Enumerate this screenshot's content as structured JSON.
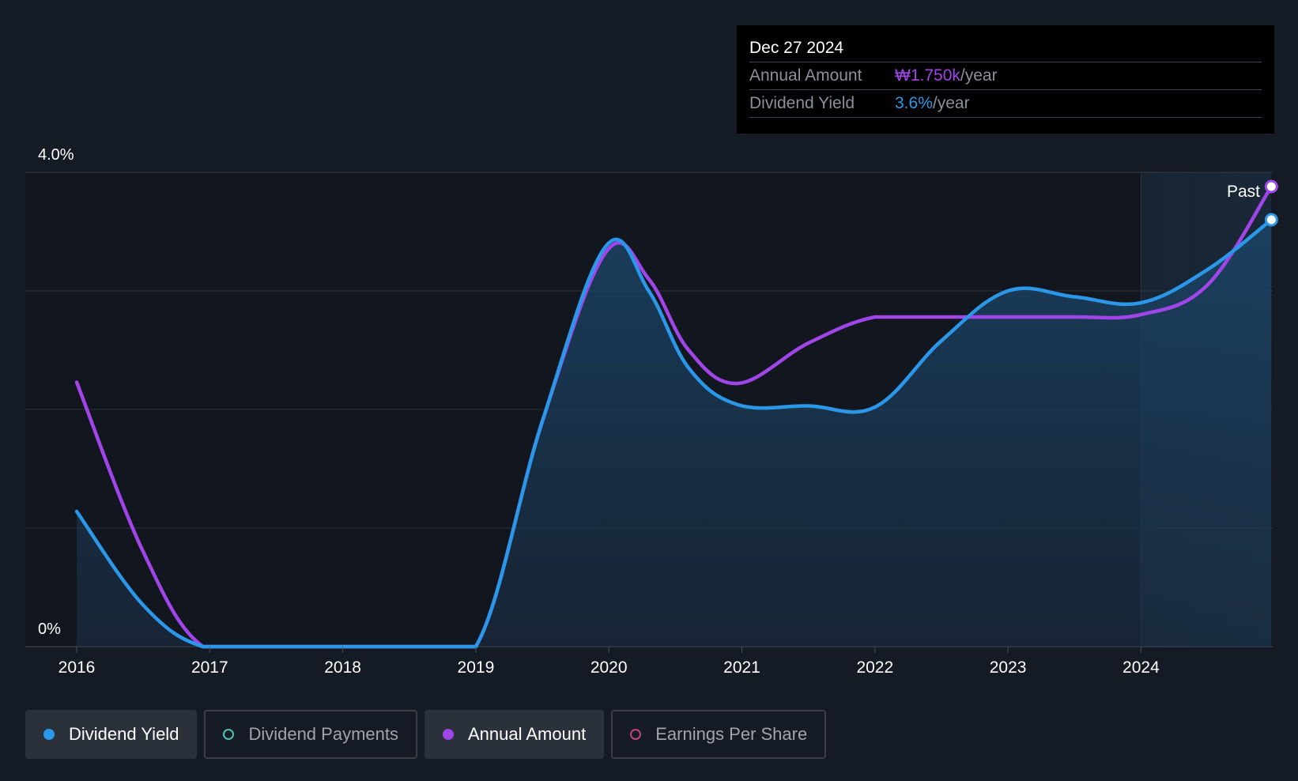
{
  "chart_data": {
    "type": "line",
    "x_ticks": [
      "2016",
      "2017",
      "2018",
      "2019",
      "2020",
      "2021",
      "2022",
      "2023",
      "2024"
    ],
    "y_tick_labels": [
      "4.0%",
      "0%"
    ],
    "ylim": [
      0,
      4.0
    ],
    "grid": true,
    "past_label": "Past",
    "series": [
      {
        "name": "Dividend Yield",
        "color": "#2b97e8",
        "area": true,
        "points": [
          [
            2016.0,
            1.14
          ],
          [
            2016.5,
            0.35
          ],
          [
            2016.95,
            0.0
          ],
          [
            2017.5,
            0.0
          ],
          [
            2018.5,
            0.0
          ],
          [
            2019.0,
            0.0
          ],
          [
            2019.5,
            1.9
          ],
          [
            2019.98,
            3.38
          ],
          [
            2020.3,
            3.0
          ],
          [
            2020.6,
            2.35
          ],
          [
            2020.97,
            2.04
          ],
          [
            2021.5,
            2.03
          ],
          [
            2022.0,
            2.02
          ],
          [
            2022.5,
            2.58
          ],
          [
            2023.0,
            3.0
          ],
          [
            2023.5,
            2.95
          ],
          [
            2024.0,
            2.9
          ],
          [
            2024.5,
            3.18
          ],
          [
            2024.98,
            3.6
          ]
        ]
      },
      {
        "name": "Annual Amount",
        "color": "#a045e8",
        "area": false,
        "points": [
          [
            2016.0,
            2.23
          ],
          [
            2016.5,
            0.8
          ],
          [
            2016.95,
            0.0
          ],
          [
            2017.5,
            0.0
          ],
          [
            2018.5,
            0.0
          ],
          [
            2019.0,
            0.0
          ],
          [
            2019.5,
            1.9
          ],
          [
            2019.98,
            3.33
          ],
          [
            2020.3,
            3.1
          ],
          [
            2020.6,
            2.5
          ],
          [
            2020.97,
            2.22
          ],
          [
            2021.5,
            2.56
          ],
          [
            2022.0,
            2.78
          ],
          [
            2022.5,
            2.78
          ],
          [
            2023.0,
            2.78
          ],
          [
            2023.5,
            2.78
          ],
          [
            2024.0,
            2.8
          ],
          [
            2024.5,
            3.05
          ],
          [
            2024.98,
            3.88
          ]
        ]
      }
    ]
  },
  "tooltip": {
    "date": "Dec 27 2024",
    "rows": [
      {
        "label": "Annual Amount",
        "value": "₩1.750k",
        "unit": "/year",
        "color": "#a045e8"
      },
      {
        "label": "Dividend Yield",
        "value": "3.6%",
        "unit": "/year",
        "color": "#2b97e8"
      }
    ]
  },
  "legend": [
    {
      "label": "Dividend Yield",
      "active": true,
      "color": "#2b97e8",
      "filled": true
    },
    {
      "label": "Dividend Payments",
      "active": false,
      "color": "#4fc1b8",
      "filled": false
    },
    {
      "label": "Annual Amount",
      "active": true,
      "color": "#a045e8",
      "filled": true
    },
    {
      "label": "Earnings Per Share",
      "active": false,
      "color": "#c2447a",
      "filled": false
    }
  ]
}
